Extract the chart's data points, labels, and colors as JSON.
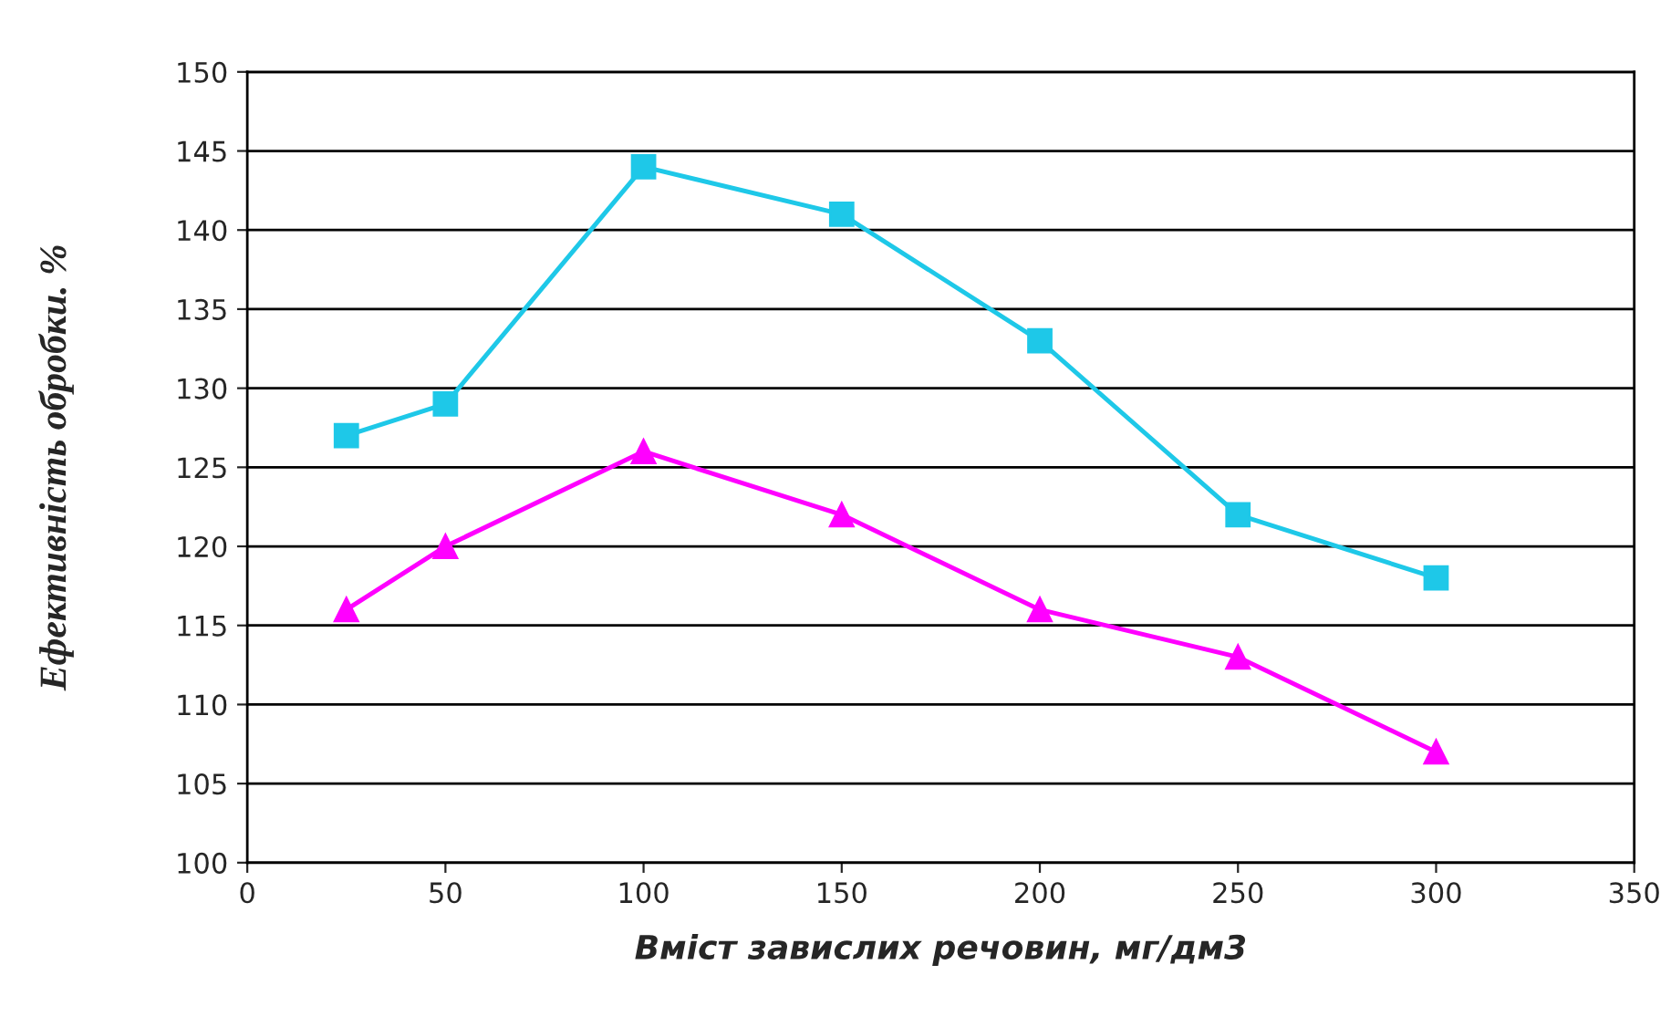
{
  "chart_data": {
    "type": "line",
    "xlabel": "Вміст завислих речовин, мг/дм3",
    "ylabel": "Ефективність обробки. %",
    "x": [
      25,
      50,
      100,
      150,
      200,
      250,
      300
    ],
    "series": [
      {
        "color": "#1ec8e8",
        "marker": "square",
        "values": [
          127,
          129,
          144,
          141,
          133,
          122,
          118
        ]
      },
      {
        "color": "#ff00ff",
        "marker": "triangle",
        "values": [
          116,
          120,
          126,
          122,
          116,
          113,
          107
        ]
      }
    ],
    "xlim": [
      0,
      350
    ],
    "xticks": [
      0,
      50,
      100,
      150,
      200,
      250,
      300,
      350
    ],
    "ylim": [
      100,
      150
    ],
    "yticks": [
      100,
      105,
      110,
      115,
      120,
      125,
      130,
      135,
      140,
      145,
      150
    ],
    "grid": "y",
    "line_style": "solid"
  }
}
